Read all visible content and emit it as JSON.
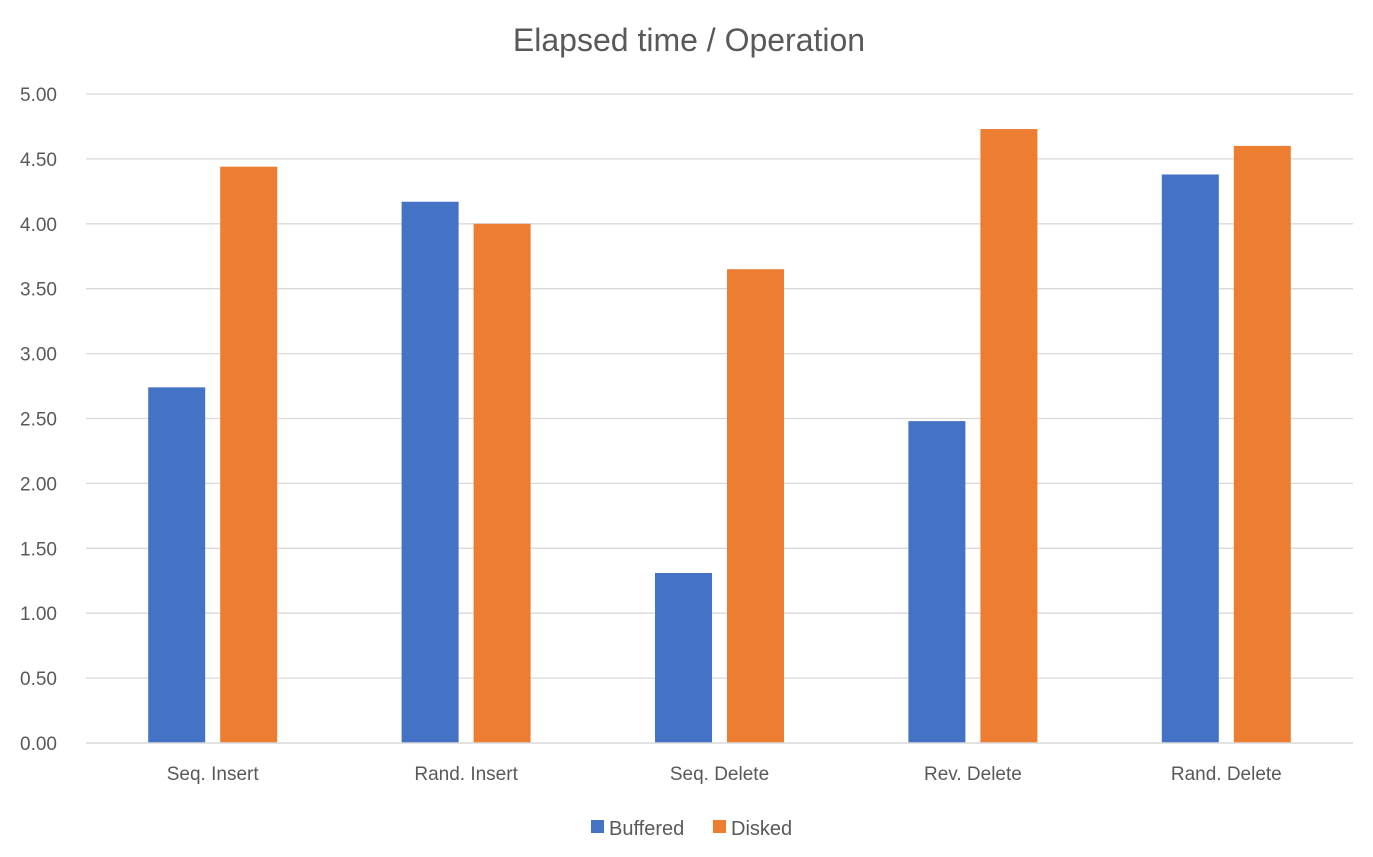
{
  "chart_data": {
    "type": "bar",
    "title": "Elapsed time / Operation",
    "xlabel": "",
    "ylabel": "",
    "categories": [
      "Seq. Insert",
      "Rand. Insert",
      "Seq. Delete",
      "Rev. Delete",
      "Rand. Delete"
    ],
    "series": [
      {
        "name": "Buffered",
        "color": "#4472c4",
        "values": [
          2.74,
          4.17,
          1.31,
          2.48,
          4.38
        ]
      },
      {
        "name": "Disked",
        "color": "#ed7d31",
        "values": [
          4.44,
          4.0,
          3.65,
          4.73,
          4.6
        ]
      }
    ],
    "ylim": [
      0,
      5
    ],
    "yticks": [
      "0.00",
      "0.50",
      "1.00",
      "1.50",
      "2.00",
      "2.50",
      "3.00",
      "3.50",
      "4.00",
      "4.50",
      "5.00"
    ],
    "ytick_values": [
      0,
      0.5,
      1,
      1.5,
      2,
      2.5,
      3,
      3.5,
      4,
      4.5,
      5
    ],
    "grid": true,
    "legend_position": "bottom"
  }
}
